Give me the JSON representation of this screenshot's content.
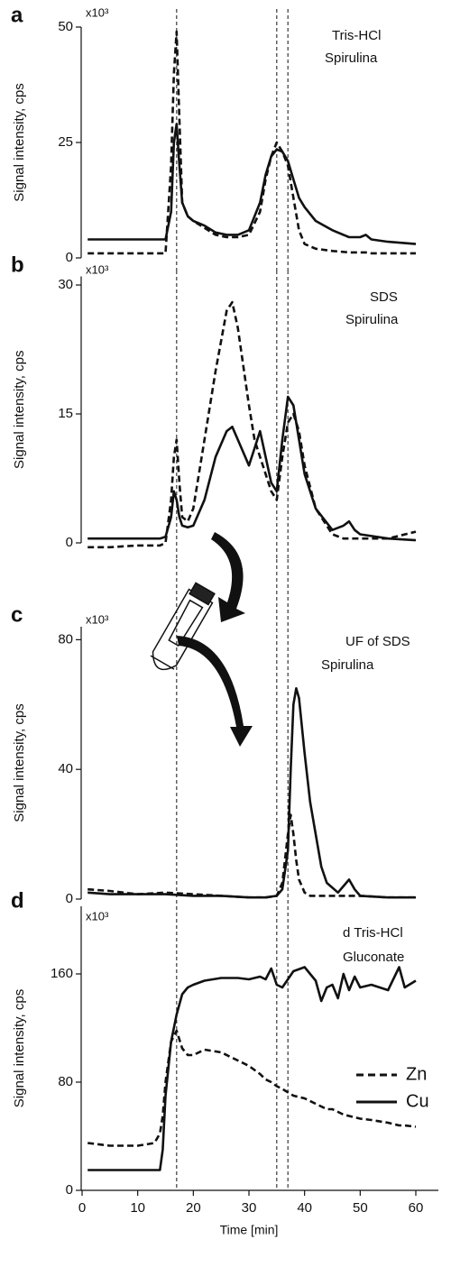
{
  "chart_data": [
    {
      "type": "line",
      "panel": "a",
      "unit": "x10³",
      "ylabel": "Signal intensity, cps",
      "annotation": [
        "Tris-HCl",
        "Spirulina"
      ],
      "xlim": [
        0,
        60
      ],
      "ylim": [
        0,
        50
      ],
      "yticks": [
        0,
        25,
        50
      ],
      "vlines": [
        17,
        35,
        37
      ],
      "x": [
        1,
        5,
        10,
        14,
        15,
        16,
        16.5,
        17,
        17.5,
        18,
        19,
        20,
        22,
        24,
        26,
        28,
        30,
        32,
        33,
        34,
        35,
        36,
        37,
        38,
        39,
        40,
        42,
        45,
        48,
        50,
        51,
        52,
        55,
        60
      ],
      "series": [
        {
          "name": "Cu",
          "color": "#111111",
          "dash": false,
          "values": [
            4,
            4,
            4,
            4,
            4,
            10,
            25,
            29,
            20,
            12,
            9,
            8,
            7,
            5.5,
            5,
            5,
            6,
            12,
            18,
            22,
            23.5,
            23,
            21,
            17,
            13,
            11,
            8,
            6,
            4.5,
            4.5,
            5,
            4,
            3.5,
            3
          ]
        },
        {
          "name": "Zn",
          "color": "#111111",
          "dash": true,
          "values": [
            1,
            1,
            1,
            1,
            1,
            20,
            40,
            49,
            30,
            12,
            9,
            8,
            6.5,
            5,
            4.5,
            4.5,
            5,
            10,
            17,
            22,
            25,
            23,
            20,
            13,
            6,
            3,
            2,
            1.5,
            1.2,
            1.2,
            1.2,
            1,
            1,
            1
          ]
        }
      ]
    },
    {
      "type": "line",
      "panel": "b",
      "unit": "x10³",
      "ylabel": "Signal intensity, cps",
      "annotation": [
        "SDS",
        "Spirulina"
      ],
      "xlim": [
        0,
        60
      ],
      "ylim": [
        0,
        31
      ],
      "yticks": [
        0,
        15,
        30
      ],
      "vlines": [
        17,
        35,
        37
      ],
      "x": [
        1,
        5,
        10,
        14,
        15,
        16,
        16.5,
        17,
        17.5,
        18,
        19,
        20,
        22,
        24,
        26,
        27,
        28,
        30,
        31,
        32,
        33,
        34,
        35,
        36,
        37,
        38,
        39,
        40,
        42,
        45,
        47,
        48,
        49,
        50,
        55,
        60
      ],
      "series": [
        {
          "name": "Cu",
          "color": "#111111",
          "dash": false,
          "values": [
            0.5,
            0.5,
            0.5,
            0.5,
            0.7,
            3,
            6,
            5,
            3,
            2,
            1.8,
            2,
            5,
            10,
            13,
            13.5,
            12,
            9,
            11,
            13,
            10,
            7,
            6,
            12,
            17,
            16,
            12,
            8,
            4,
            1.5,
            2,
            2.5,
            1.5,
            1,
            0.5,
            0.3
          ]
        },
        {
          "name": "Zn",
          "color": "#111111",
          "dash": true,
          "values": [
            -0.5,
            -0.5,
            -0.3,
            -0.3,
            0,
            5,
            10,
            12,
            7,
            3,
            2.5,
            4,
            12,
            20,
            27,
            28,
            25,
            16,
            12,
            10,
            8,
            6,
            5,
            10,
            14,
            15,
            13,
            9,
            4,
            1,
            0.5,
            0.5,
            0.5,
            0.5,
            0.5,
            1.3
          ]
        }
      ]
    },
    {
      "type": "line",
      "panel": "c",
      "unit": "x10³",
      "ylabel": "Signal intensity, cps",
      "annotation": [
        "UF of SDS",
        "Spirulina"
      ],
      "xlim": [
        0,
        60
      ],
      "ylim": [
        0,
        84
      ],
      "yticks": [
        0,
        40,
        80
      ],
      "vlines": [
        17,
        35,
        37
      ],
      "x": [
        1,
        5,
        10,
        15,
        20,
        25,
        30,
        33,
        35,
        36,
        37,
        37.5,
        38,
        38.5,
        39,
        40,
        41,
        42,
        43,
        44,
        46,
        47,
        48,
        49,
        50,
        55,
        60
      ],
      "series": [
        {
          "name": "Cu",
          "color": "#111111",
          "dash": false,
          "values": [
            2,
            1.5,
            1.5,
            1.5,
            1,
            1,
            0.5,
            0.5,
            1,
            3,
            15,
            40,
            60,
            65,
            62,
            45,
            30,
            20,
            10,
            5,
            2,
            4,
            6,
            3,
            1,
            0.5,
            0.5
          ]
        },
        {
          "name": "Zn",
          "color": "#111111",
          "dash": true,
          "values": [
            3,
            2.5,
            1.5,
            2,
            1.5,
            1,
            0.5,
            0.5,
            1,
            5,
            20,
            26,
            20,
            12,
            6,
            2,
            1,
            1,
            1,
            1,
            1,
            1,
            1,
            1,
            1,
            0.5,
            0.5
          ]
        }
      ]
    },
    {
      "type": "line",
      "panel": "d",
      "unit": "x10³",
      "ylabel": "Signal intensity, cps",
      "annotation": [
        "d Tris-HCl",
        "Gluconate"
      ],
      "xlabel": "Time [min]",
      "xlim": [
        0,
        60
      ],
      "xticks": [
        0,
        10,
        20,
        30,
        40,
        50,
        60
      ],
      "ylim": [
        0,
        210
      ],
      "yticks": [
        0,
        80,
        160
      ],
      "vlines": [
        17,
        35,
        37
      ],
      "legend": "right",
      "x": [
        1,
        5,
        10,
        13,
        14,
        14.5,
        15,
        16,
        17,
        18,
        19,
        20,
        22,
        25,
        28,
        30,
        32,
        33,
        34,
        35,
        36,
        38,
        40,
        42,
        43,
        44,
        45,
        46,
        47,
        48,
        49,
        50,
        52,
        55,
        57,
        58,
        60
      ],
      "series": [
        {
          "name": "Zn",
          "color": "#111111",
          "dash": true,
          "values": [
            35,
            33,
            33,
            35,
            42,
            55,
            80,
            110,
            118,
            105,
            100,
            100,
            104,
            102,
            96,
            92,
            86,
            82,
            80,
            77,
            75,
            70,
            68,
            64,
            62,
            60,
            60,
            58,
            56,
            55,
            54,
            53,
            52,
            50,
            48,
            48,
            47
          ]
        },
        {
          "name": "Cu",
          "color": "#111111",
          "dash": false,
          "values": [
            15,
            15,
            15,
            15,
            15,
            30,
            70,
            110,
            130,
            145,
            150,
            152,
            155,
            157,
            157,
            156,
            158,
            156,
            164,
            152,
            150,
            162,
            165,
            155,
            140,
            150,
            152,
            142,
            160,
            148,
            158,
            150,
            152,
            148,
            165,
            150,
            155
          ]
        }
      ]
    }
  ]
}
